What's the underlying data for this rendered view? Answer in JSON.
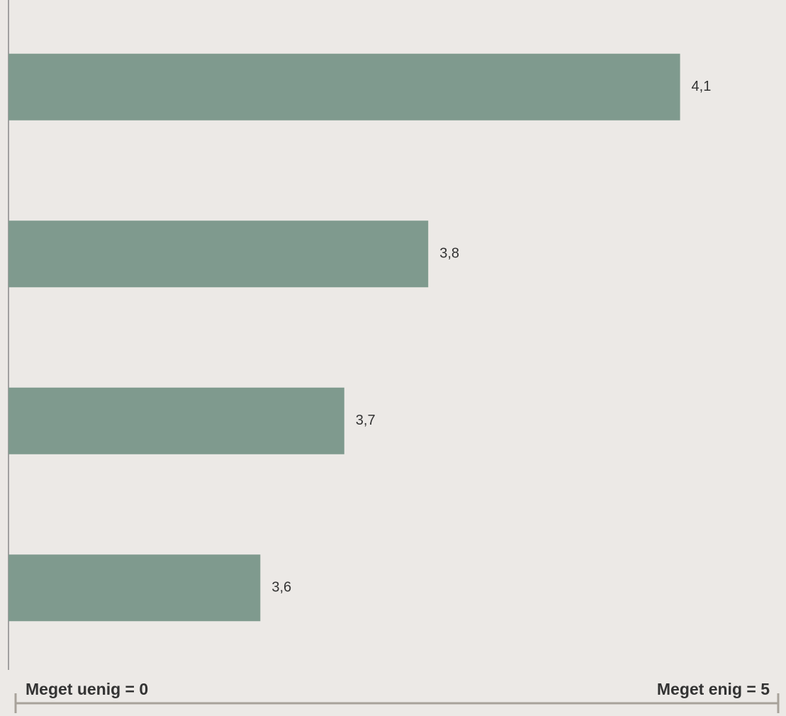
{
  "chart_data": {
    "type": "bar",
    "orientation": "horizontal",
    "values": [
      4.1,
      3.8,
      3.7,
      3.6
    ],
    "value_labels": [
      "4,1",
      "3,8",
      "3,7",
      "3,6"
    ],
    "color": "#7f9a8e",
    "xlim": [
      3.3,
      4.2
    ],
    "annotations": [
      "Meget uenig = 0",
      "Meget enig = 5"
    ]
  }
}
